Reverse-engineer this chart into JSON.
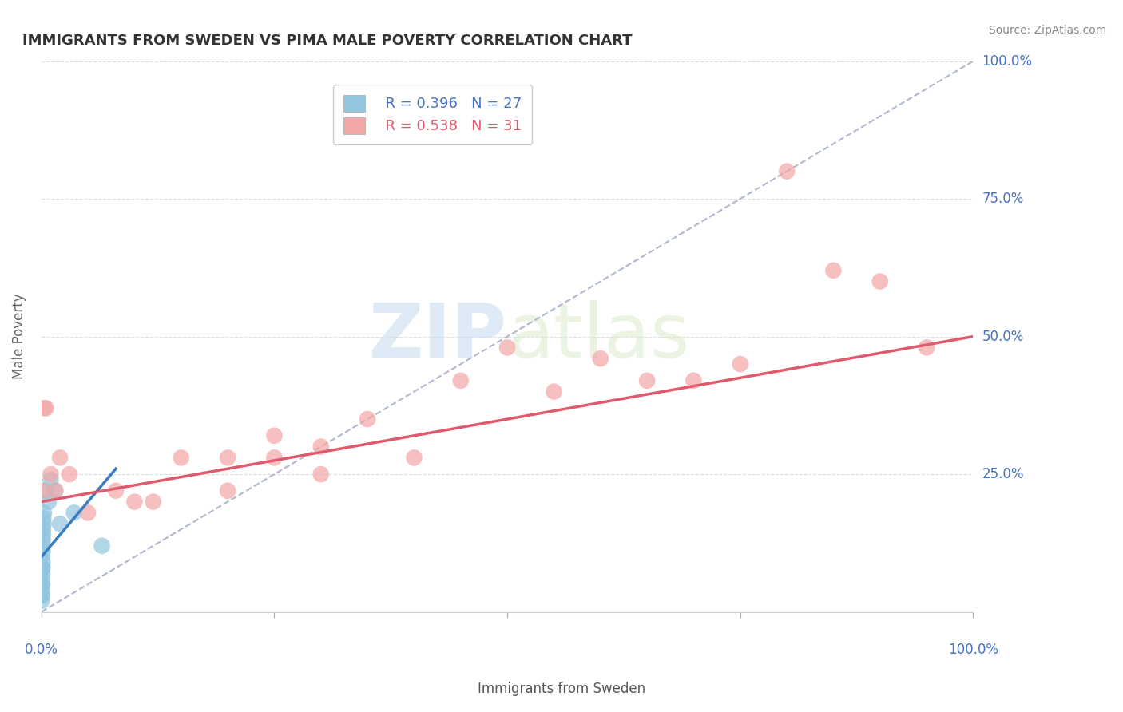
{
  "title": "IMMIGRANTS FROM SWEDEN VS PIMA MALE POVERTY CORRELATION CHART",
  "source": "Source: ZipAtlas.com",
  "ylabel": "Male Poverty",
  "xlim": [
    0,
    100
  ],
  "ylim": [
    0,
    100
  ],
  "legend_blue_r": "R = 0.396",
  "legend_blue_n": "N = 27",
  "legend_pink_r": "R = 0.538",
  "legend_pink_n": "N = 31",
  "blue_color": "#92c5de",
  "pink_color": "#f4a6a6",
  "pink_line_color": "#e05a6e",
  "blue_line_color": "#3a7dbf",
  "diagonal_color": "#b0b8d0",
  "watermark_color": "#dde8f0",
  "blue_scatter_x": [
    0.05,
    0.05,
    0.06,
    0.07,
    0.08,
    0.08,
    0.09,
    0.1,
    0.1,
    0.11,
    0.12,
    0.13,
    0.14,
    0.15,
    0.16,
    0.18,
    0.2,
    0.22,
    0.25,
    0.28,
    0.5,
    0.8,
    1.0,
    1.5,
    2.0,
    3.5,
    6.5
  ],
  "blue_scatter_y": [
    2,
    4,
    3,
    5,
    6,
    3,
    8,
    5,
    10,
    7,
    12,
    8,
    9,
    11,
    13,
    14,
    15,
    17,
    16,
    18,
    22,
    20,
    24,
    22,
    16,
    18,
    12
  ],
  "pink_scatter_x": [
    0.1,
    0.3,
    0.5,
    1.0,
    1.5,
    2.0,
    3.0,
    5.0,
    8.0,
    10.0,
    12.0,
    15.0,
    20.0,
    25.0,
    30.0,
    35.0,
    40.0,
    45.0,
    50.0,
    55.0,
    60.0,
    65.0,
    70.0,
    75.0,
    80.0,
    85.0,
    20.0,
    25.0,
    30.0,
    90.0,
    95.0
  ],
  "pink_scatter_y": [
    22,
    37,
    37,
    25,
    22,
    28,
    25,
    18,
    22,
    20,
    20,
    28,
    28,
    32,
    30,
    35,
    28,
    42,
    48,
    40,
    46,
    42,
    42,
    45,
    80,
    62,
    22,
    28,
    25,
    60,
    48
  ],
  "blue_line_x0": 0.0,
  "blue_line_x1": 8.0,
  "blue_line_y0": 10.0,
  "blue_line_y1": 26.0,
  "pink_line_x0": 0.0,
  "pink_line_x1": 100.0,
  "pink_line_y0": 20.0,
  "pink_line_y1": 50.0,
  "diag_x0": 0,
  "diag_x1": 100,
  "diag_y0": 0,
  "diag_y1": 100
}
